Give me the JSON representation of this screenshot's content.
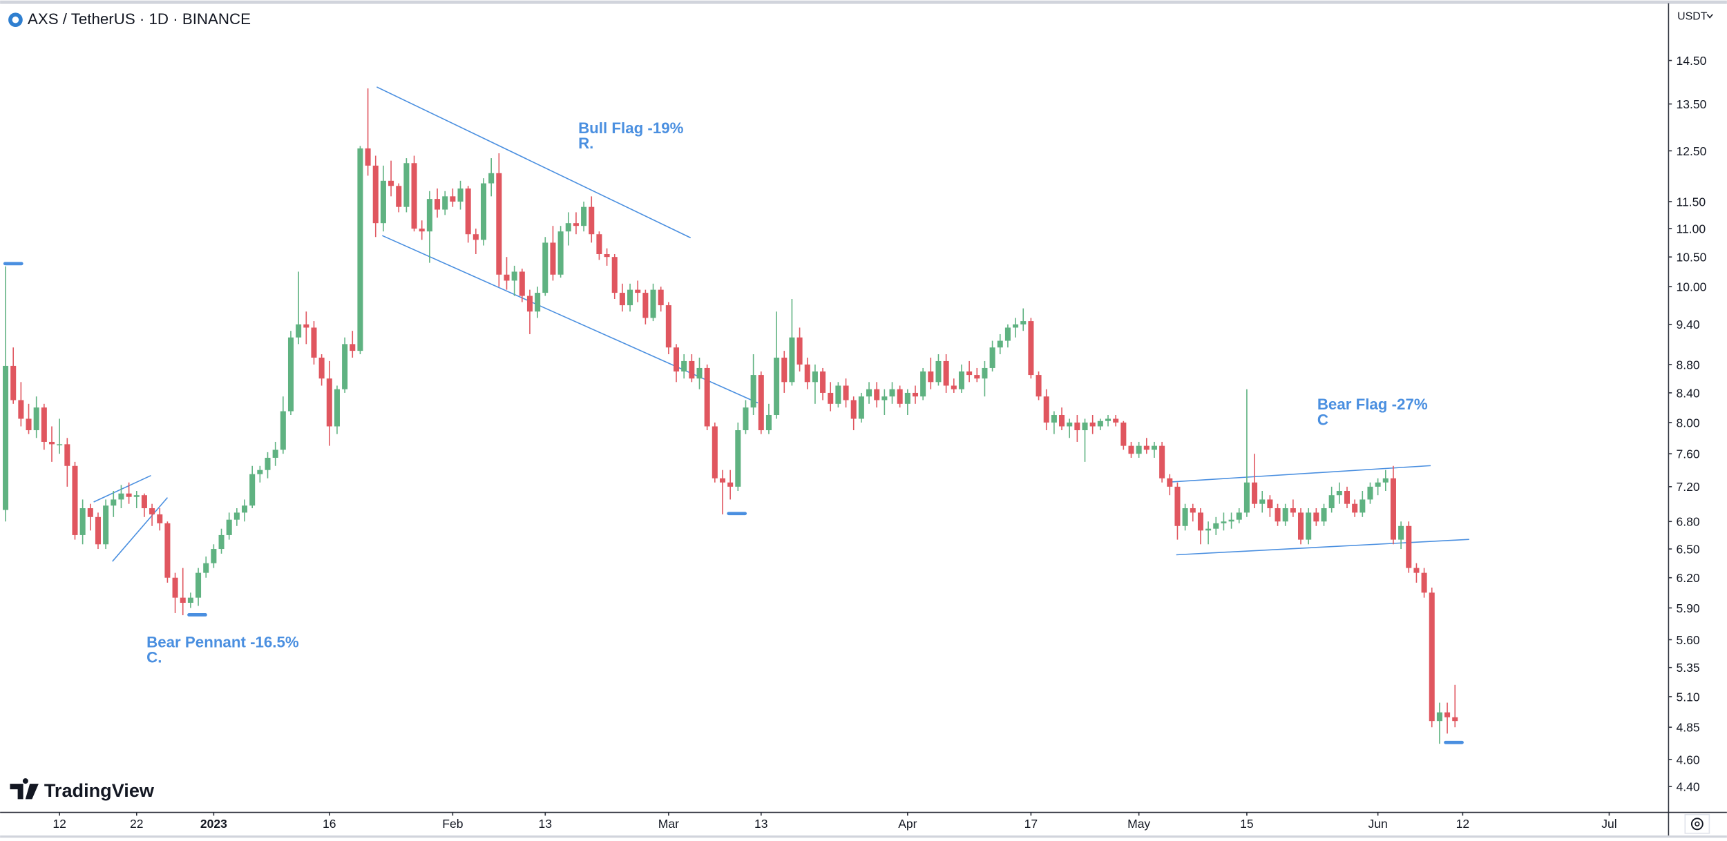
{
  "chart_data": {
    "type": "candlestick",
    "title": "AXS / TetherUS · 1D · BINANCE",
    "currency": "USDT",
    "brand": "TradingView",
    "log": true,
    "grid": false,
    "up_color": "#5fb281",
    "down_color": "#e0565f",
    "annotations": [
      [
        "Bear Pennant -16.5%",
        "C."
      ],
      [
        "Bull Flag -19%",
        "R."
      ],
      [
        "Bear Flag -27%",
        "C"
      ]
    ],
    "xlim": [
      -0.71,
      215.7
    ],
    "xticks": [
      {
        "value": 7,
        "label": "12"
      },
      {
        "value": 17,
        "label": "22"
      },
      {
        "value": 27,
        "label": "2023"
      },
      {
        "value": 42,
        "label": "16"
      },
      {
        "value": 58,
        "label": "Feb"
      },
      {
        "value": 70,
        "label": "13"
      },
      {
        "value": 86,
        "label": "Mar"
      },
      {
        "value": 98,
        "label": "13"
      },
      {
        "value": 117,
        "label": "Apr"
      },
      {
        "value": 133,
        "label": "17"
      },
      {
        "value": 147,
        "label": "May"
      },
      {
        "value": 161,
        "label": "15"
      },
      {
        "value": 178,
        "label": "Jun"
      },
      {
        "value": 189,
        "label": "12"
      },
      {
        "value": 208,
        "label": "Jul"
      }
    ],
    "ylim": [
      4.24,
      15.87
    ],
    "yticks": [
      {
        "value": 14.5,
        "label": "14.50"
      },
      {
        "value": 13.5,
        "label": "13.50"
      },
      {
        "value": 12.5,
        "label": "12.50"
      },
      {
        "value": 11.5,
        "label": "11.50"
      },
      {
        "value": 11,
        "label": "11.00"
      },
      {
        "value": 10.5,
        "label": "10.50"
      },
      {
        "value": 10,
        "label": "10.00"
      },
      {
        "value": 9.4,
        "label": "9.40"
      },
      {
        "value": 8.8,
        "label": "8.80"
      },
      {
        "value": 8.4,
        "label": "8.40"
      },
      {
        "value": 8,
        "label": "8.00"
      },
      {
        "value": 7.6,
        "label": "7.60"
      },
      {
        "value": 7.2,
        "label": "7.20"
      },
      {
        "value": 6.8,
        "label": "6.80"
      },
      {
        "value": 6.5,
        "label": "6.50"
      },
      {
        "value": 6.2,
        "label": "6.20"
      },
      {
        "value": 5.9,
        "label": "5.90"
      },
      {
        "value": 5.6,
        "label": "5.60"
      },
      5.35,
      {
        "value": 5.1,
        "label": "5.10"
      },
      4.85,
      {
        "value": 4.6,
        "label": "4.60"
      },
      {
        "value": 4.4,
        "label": "4.40"
      }
    ],
    "candles": [
      [
        6.93,
        10.34,
        6.8,
        8.78
      ],
      [
        8.78,
        9.05,
        8.25,
        8.3
      ],
      [
        8.3,
        8.55,
        7.95,
        8.05
      ],
      [
        8.05,
        8.25,
        7.85,
        7.9
      ],
      [
        7.9,
        8.35,
        7.8,
        8.2
      ],
      [
        8.2,
        8.25,
        7.65,
        7.75
      ],
      [
        7.75,
        7.95,
        7.5,
        7.72
      ],
      [
        7.72,
        8.05,
        7.6,
        7.72
      ],
      [
        7.72,
        7.8,
        7.2,
        7.45
      ],
      [
        7.45,
        7.5,
        6.6,
        6.65
      ],
      [
        6.65,
        7.05,
        6.55,
        6.95
      ],
      [
        6.95,
        7.0,
        6.7,
        6.85
      ],
      [
        6.85,
        6.9,
        6.5,
        6.55
      ],
      [
        6.55,
        7.05,
        6.5,
        6.98
      ],
      [
        6.98,
        7.15,
        6.85,
        7.05
      ],
      [
        7.05,
        7.22,
        6.95,
        7.12
      ],
      [
        7.12,
        7.25,
        7.0,
        7.08
      ],
      [
        7.08,
        7.15,
        6.95,
        7.1
      ],
      [
        7.1,
        7.12,
        6.85,
        6.95
      ],
      [
        6.95,
        7.0,
        6.75,
        6.88
      ],
      [
        6.88,
        6.95,
        6.7,
        6.78
      ],
      [
        6.78,
        6.8,
        6.15,
        6.2
      ],
      [
        6.2,
        6.25,
        5.85,
        6.0
      ],
      [
        6.0,
        6.3,
        5.83,
        5.95
      ],
      [
        5.95,
        6.05,
        5.9,
        6.0
      ],
      [
        6.0,
        6.3,
        5.92,
        6.25
      ],
      [
        6.25,
        6.42,
        6.2,
        6.35
      ],
      [
        6.35,
        6.55,
        6.3,
        6.5
      ],
      [
        6.5,
        6.72,
        6.45,
        6.65
      ],
      [
        6.65,
        6.9,
        6.6,
        6.82
      ],
      [
        6.82,
        6.95,
        6.75,
        6.9
      ],
      [
        6.9,
        7.05,
        6.8,
        6.98
      ],
      [
        6.98,
        7.45,
        6.95,
        7.35
      ],
      [
        7.35,
        7.45,
        7.25,
        7.4
      ],
      [
        7.4,
        7.62,
        7.3,
        7.55
      ],
      [
        7.55,
        7.75,
        7.45,
        7.65
      ],
      [
        7.65,
        8.35,
        7.6,
        8.15
      ],
      [
        8.15,
        9.3,
        8.1,
        9.2
      ],
      [
        9.2,
        10.25,
        9.1,
        9.4
      ],
      [
        9.4,
        9.6,
        9.1,
        9.35
      ],
      [
        9.35,
        9.45,
        8.8,
        8.9
      ],
      [
        8.9,
        8.95,
        8.5,
        8.6
      ],
      [
        8.6,
        8.85,
        7.7,
        7.95
      ],
      [
        7.95,
        8.5,
        7.85,
        8.45
      ],
      [
        8.45,
        9.2,
        8.4,
        9.1
      ],
      [
        9.1,
        9.3,
        8.9,
        9.0
      ],
      [
        9.0,
        12.6,
        8.95,
        12.55
      ],
      [
        12.55,
        13.85,
        12.0,
        12.2
      ],
      [
        12.2,
        12.4,
        10.85,
        11.1
      ],
      [
        11.1,
        12.2,
        10.95,
        11.9
      ],
      [
        11.9,
        12.3,
        11.6,
        11.8
      ],
      [
        11.8,
        11.85,
        11.3,
        11.4
      ],
      [
        11.4,
        12.35,
        11.3,
        12.25
      ],
      [
        12.25,
        12.4,
        10.95,
        11.0
      ],
      [
        11.0,
        11.15,
        10.8,
        10.95
      ],
      [
        10.95,
        11.7,
        10.4,
        11.55
      ],
      [
        11.55,
        11.75,
        11.2,
        11.35
      ],
      [
        11.35,
        11.7,
        11.25,
        11.6
      ],
      [
        11.6,
        11.75,
        11.4,
        11.5
      ],
      [
        11.5,
        11.9,
        11.35,
        11.75
      ],
      [
        11.75,
        11.8,
        10.75,
        10.9
      ],
      [
        10.9,
        11.0,
        10.55,
        10.8
      ],
      [
        10.8,
        11.95,
        10.7,
        11.85
      ],
      [
        11.85,
        12.35,
        11.6,
        12.05
      ],
      [
        12.05,
        12.45,
        10.0,
        10.2
      ],
      [
        10.2,
        10.5,
        9.95,
        10.1
      ],
      [
        10.1,
        10.35,
        9.85,
        10.25
      ],
      [
        10.25,
        10.3,
        9.75,
        9.85
      ],
      [
        9.85,
        9.95,
        9.25,
        9.6
      ],
      [
        9.6,
        10.0,
        9.5,
        9.9
      ],
      [
        9.9,
        10.85,
        9.85,
        10.75
      ],
      [
        10.75,
        11.05,
        10.1,
        10.2
      ],
      [
        10.2,
        11.05,
        10.15,
        10.95
      ],
      [
        10.95,
        11.3,
        10.7,
        11.1
      ],
      [
        11.1,
        11.3,
        10.9,
        11.05
      ],
      [
        11.05,
        11.5,
        10.95,
        11.4
      ],
      [
        11.4,
        11.6,
        10.75,
        10.9
      ],
      [
        10.9,
        10.95,
        10.45,
        10.55
      ],
      [
        10.55,
        10.65,
        10.35,
        10.5
      ],
      [
        10.5,
        10.55,
        9.8,
        9.9
      ],
      [
        9.9,
        10.05,
        9.6,
        9.7
      ],
      [
        9.7,
        10.05,
        9.6,
        9.95
      ],
      [
        9.95,
        10.1,
        9.75,
        9.9
      ],
      [
        9.9,
        9.95,
        9.4,
        9.5
      ],
      [
        9.5,
        10.05,
        9.45,
        9.95
      ],
      [
        9.95,
        10.0,
        9.6,
        9.7
      ],
      [
        9.7,
        9.75,
        8.95,
        9.05
      ],
      [
        9.05,
        9.1,
        8.55,
        8.7
      ],
      [
        8.7,
        8.95,
        8.6,
        8.85
      ],
      [
        8.85,
        8.95,
        8.55,
        8.6
      ],
      [
        8.6,
        8.9,
        8.45,
        8.75
      ],
      [
        8.75,
        8.8,
        7.9,
        7.95
      ],
      [
        7.95,
        8.0,
        7.25,
        7.3
      ],
      [
        7.3,
        7.4,
        6.88,
        7.25
      ],
      [
        7.25,
        7.4,
        7.05,
        7.2
      ],
      [
        7.2,
        8.0,
        7.15,
        7.9
      ],
      [
        7.9,
        8.3,
        7.85,
        8.2
      ],
      [
        8.2,
        8.95,
        8.1,
        8.65
      ],
      [
        8.65,
        8.7,
        7.85,
        7.9
      ],
      [
        7.9,
        8.25,
        7.85,
        8.1
      ],
      [
        8.1,
        9.6,
        8.05,
        8.9
      ],
      [
        8.9,
        9.0,
        8.4,
        8.55
      ],
      [
        8.55,
        9.8,
        8.5,
        9.2
      ],
      [
        9.2,
        9.35,
        8.7,
        8.8
      ],
      [
        8.8,
        8.9,
        8.45,
        8.55
      ],
      [
        8.55,
        8.8,
        8.25,
        8.7
      ],
      [
        8.7,
        8.75,
        8.3,
        8.4
      ],
      [
        8.4,
        8.55,
        8.15,
        8.25
      ],
      [
        8.25,
        8.55,
        8.2,
        8.5
      ],
      [
        8.5,
        8.6,
        8.2,
        8.3
      ],
      [
        8.3,
        8.35,
        7.9,
        8.05
      ],
      [
        8.05,
        8.4,
        8.0,
        8.35
      ],
      [
        8.35,
        8.55,
        8.25,
        8.45
      ],
      [
        8.45,
        8.55,
        8.2,
        8.3
      ],
      [
        8.3,
        8.45,
        8.1,
        8.35
      ],
      [
        8.35,
        8.55,
        8.25,
        8.45
      ],
      [
        8.45,
        8.5,
        8.2,
        8.25
      ],
      [
        8.25,
        8.45,
        8.1,
        8.4
      ],
      [
        8.4,
        8.5,
        8.25,
        8.35
      ],
      [
        8.35,
        8.75,
        8.3,
        8.7
      ],
      [
        8.7,
        8.9,
        8.45,
        8.55
      ],
      [
        8.55,
        8.95,
        8.5,
        8.85
      ],
      [
        8.85,
        8.95,
        8.4,
        8.5
      ],
      [
        8.5,
        8.6,
        8.4,
        8.45
      ],
      [
        8.45,
        8.8,
        8.4,
        8.7
      ],
      [
        8.7,
        8.85,
        8.55,
        8.65
      ],
      [
        8.65,
        8.75,
        8.55,
        8.6
      ],
      [
        8.6,
        8.85,
        8.35,
        8.75
      ],
      [
        8.75,
        9.15,
        8.7,
        9.05
      ],
      [
        9.05,
        9.25,
        8.95,
        9.15
      ],
      [
        9.15,
        9.4,
        9.05,
        9.35
      ],
      [
        9.35,
        9.5,
        9.2,
        9.4
      ],
      [
        9.4,
        9.65,
        9.3,
        9.45
      ],
      [
        9.45,
        9.5,
        8.6,
        8.65
      ],
      [
        8.65,
        8.7,
        8.3,
        8.35
      ],
      [
        8.35,
        8.45,
        7.9,
        8.0
      ],
      [
        8.0,
        8.15,
        7.85,
        8.1
      ],
      [
        8.1,
        8.2,
        7.9,
        7.95
      ],
      [
        7.95,
        8.05,
        7.8,
        8.0
      ],
      [
        8.0,
        8.1,
        7.75,
        7.9
      ],
      [
        7.9,
        8.05,
        7.5,
        8.0
      ],
      [
        8.0,
        8.1,
        7.85,
        7.95
      ],
      [
        7.95,
        8.05,
        7.9,
        8.02
      ],
      [
        8.02,
        8.1,
        7.95,
        8.05
      ],
      [
        8.05,
        8.1,
        7.95,
        8.0
      ],
      [
        8.0,
        8.02,
        7.65,
        7.7
      ],
      [
        7.7,
        7.75,
        7.55,
        7.6
      ],
      [
        7.6,
        7.75,
        7.55,
        7.7
      ],
      [
        7.7,
        7.8,
        7.6,
        7.65
      ],
      [
        7.65,
        7.75,
        7.55,
        7.7
      ],
      [
        7.7,
        7.75,
        7.25,
        7.3
      ],
      [
        7.3,
        7.35,
        7.1,
        7.2
      ],
      [
        7.2,
        7.25,
        6.6,
        6.75
      ],
      [
        6.75,
        7.0,
        6.7,
        6.95
      ],
      [
        6.95,
        7.0,
        6.8,
        6.9
      ],
      [
        6.9,
        6.95,
        6.55,
        6.7
      ],
      [
        6.7,
        6.8,
        6.55,
        6.72
      ],
      [
        6.72,
        6.85,
        6.65,
        6.78
      ],
      [
        6.78,
        6.9,
        6.7,
        6.8
      ],
      [
        6.8,
        6.9,
        6.72,
        6.82
      ],
      [
        6.82,
        6.95,
        6.78,
        6.9
      ],
      [
        6.9,
        8.45,
        6.85,
        7.25
      ],
      [
        7.25,
        7.6,
        6.95,
        7.0
      ],
      [
        7.0,
        7.15,
        6.9,
        7.05
      ],
      [
        7.05,
        7.1,
        6.85,
        6.95
      ],
      [
        6.95,
        7.0,
        6.75,
        6.8
      ],
      [
        6.8,
        7.0,
        6.75,
        6.95
      ],
      [
        6.95,
        7.05,
        6.85,
        6.9
      ],
      [
        6.9,
        6.95,
        6.55,
        6.6
      ],
      [
        6.6,
        6.95,
        6.55,
        6.9
      ],
      [
        6.9,
        6.95,
        6.75,
        6.8
      ],
      [
        6.8,
        7.0,
        6.75,
        6.95
      ],
      [
        6.95,
        7.2,
        6.9,
        7.1
      ],
      [
        7.1,
        7.25,
        7.0,
        7.15
      ],
      [
        7.15,
        7.2,
        6.95,
        7.0
      ],
      [
        7.0,
        7.05,
        6.85,
        6.9
      ],
      [
        6.9,
        7.15,
        6.85,
        7.05
      ],
      [
        7.05,
        7.25,
        7.0,
        7.2
      ],
      [
        7.2,
        7.3,
        7.1,
        7.25
      ],
      [
        7.25,
        7.4,
        7.15,
        7.3
      ],
      [
        7.3,
        7.45,
        6.55,
        6.6
      ],
      [
        6.6,
        6.8,
        6.5,
        6.75
      ],
      [
        6.75,
        6.8,
        6.25,
        6.3
      ],
      [
        6.3,
        6.35,
        6.15,
        6.25
      ],
      [
        6.25,
        6.3,
        6.0,
        6.05
      ],
      [
        6.05,
        6.1,
        4.85,
        4.9
      ],
      [
        4.9,
        5.05,
        4.72,
        4.97
      ],
      [
        4.97,
        5.05,
        4.8,
        4.93
      ],
      [
        4.93,
        5.2,
        4.85,
        4.9
      ]
    ]
  }
}
